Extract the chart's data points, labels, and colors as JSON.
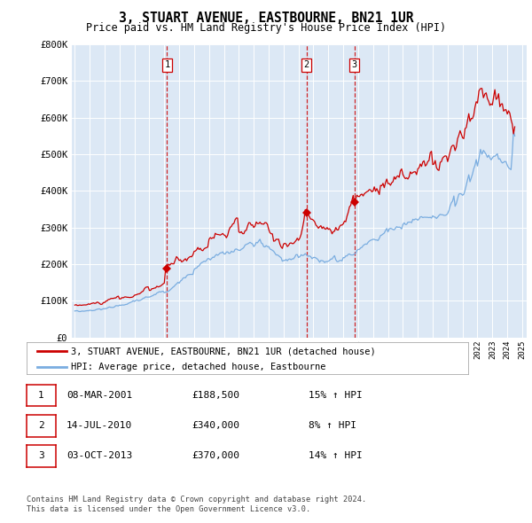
{
  "title": "3, STUART AVENUE, EASTBOURNE, BN21 1UR",
  "subtitle": "Price paid vs. HM Land Registry's House Price Index (HPI)",
  "legend_label_red": "3, STUART AVENUE, EASTBOURNE, BN21 1UR (detached house)",
  "legend_label_blue": "HPI: Average price, detached house, Eastbourne",
  "footer1": "Contains HM Land Registry data © Crown copyright and database right 2024.",
  "footer2": "This data is licensed under the Open Government Licence v3.0.",
  "sales": [
    {
      "num": 1,
      "date": "08-MAR-2001",
      "price": 188500,
      "pct": "15%",
      "year": 2001.19
    },
    {
      "num": 2,
      "date": "14-JUL-2010",
      "price": 340000,
      "pct": "8%",
      "year": 2010.54
    },
    {
      "num": 3,
      "date": "03-OCT-2013",
      "price": 370000,
      "pct": "14%",
      "year": 2013.75
    }
  ],
  "ylim": [
    0,
    800000
  ],
  "yticks": [
    0,
    100000,
    200000,
    300000,
    400000,
    500000,
    600000,
    700000,
    800000
  ],
  "ytick_labels": [
    "£0",
    "£100K",
    "£200K",
    "£300K",
    "£400K",
    "£500K",
    "£600K",
    "£700K",
    "£800K"
  ],
  "xlim_start": 1995.0,
  "xlim_end": 2025.3,
  "red_color": "#cc0000",
  "blue_color": "#7aade0",
  "vline_color": "#cc0000",
  "plot_bg": "#dce8f5",
  "grid_color": "#ffffff"
}
